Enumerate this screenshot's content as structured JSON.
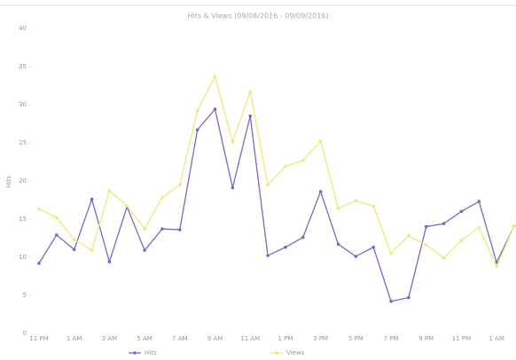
{
  "chart_data": {
    "type": "line",
    "title": "Hits & Views (09/08/2016 - 09/09/2016)",
    "y_label": "Hits",
    "categories": [
      "11 PM",
      null,
      "1 AM",
      null,
      "3 AM",
      null,
      "5 AM",
      null,
      "7 AM",
      null,
      "9 AM",
      null,
      "11 AM",
      null,
      "1 PM",
      null,
      "3 PM",
      null,
      "5 PM",
      null,
      "7 PM",
      null,
      "9 PM",
      null,
      "11 PM",
      null,
      "1 AM",
      null
    ],
    "series": [
      {
        "name": "Hits",
        "color": "#6a6fc4",
        "values": [
          9.2,
          12.9,
          11.0,
          17.6,
          9.4,
          16.6,
          10.9,
          13.7,
          13.6,
          26.7,
          29.4,
          19.1,
          28.5,
          10.2,
          11.3,
          12.6,
          18.6,
          11.7,
          10.1,
          11.3,
          4.2,
          4.7,
          14.0,
          14.4,
          16.0,
          17.3,
          9.3,
          14.1
        ]
      },
      {
        "name": "Views",
        "color": "#e4ef78",
        "values": [
          16.3,
          15.2,
          12.3,
          10.9,
          18.7,
          16.7,
          13.7,
          17.8,
          19.5,
          29.2,
          33.7,
          25.1,
          31.7,
          19.5,
          21.9,
          22.7,
          25.2,
          16.4,
          17.4,
          16.7,
          10.5,
          12.8,
          11.6,
          9.9,
          12.2,
          13.9,
          8.8,
          14.1
        ]
      }
    ],
    "ylim": [
      0,
      40
    ],
    "yticks": [
      0,
      5,
      10,
      15,
      20,
      25,
      30,
      35,
      40
    ]
  }
}
